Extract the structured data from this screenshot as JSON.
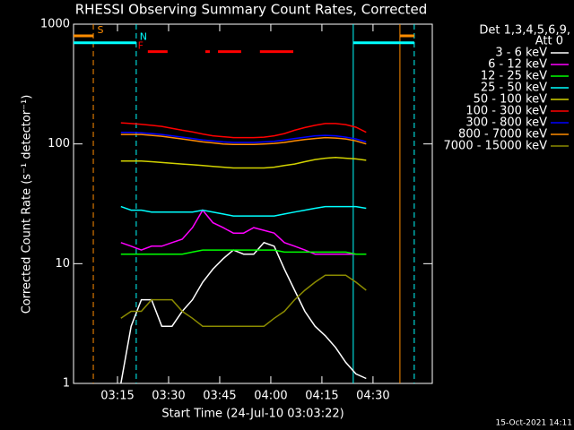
{
  "chart_data": {
    "type": "line",
    "title": "RHESSI Observing Summary Count Rates, Corrected",
    "x_label": "Start Time (24-Jul-10 03:03:22)",
    "y_label": "Corrected Count Rate (s⁻¹ detector⁻¹)",
    "legend_header": [
      "Det 1,3,4,5,6,9,",
      "Att 0"
    ],
    "footer": "15-Oct-2021 14:11",
    "log_y": true,
    "xlim": [
      182.1,
      287.4
    ],
    "ylim": [
      1,
      1000
    ],
    "xticks": [
      {
        "value": 195,
        "label": "03:15"
      },
      {
        "value": 210,
        "label": "03:30"
      },
      {
        "value": 225,
        "label": "03:45"
      },
      {
        "value": 240,
        "label": "04:00"
      },
      {
        "value": 255,
        "label": "04:15"
      },
      {
        "value": 270,
        "label": "04:30"
      }
    ],
    "yticks": [
      1,
      10,
      100,
      1000
    ],
    "x": [
      196,
      199,
      202,
      205,
      208,
      211,
      214,
      217,
      220,
      223,
      226,
      229,
      232,
      235,
      238,
      241,
      244,
      247,
      250,
      253,
      256,
      259,
      262,
      265,
      268
    ],
    "series": [
      {
        "name": "3 - 6 keV",
        "color": "#ffffff",
        "values": [
          1,
          3,
          5,
          5,
          3,
          3,
          4,
          5,
          7,
          9,
          11,
          13,
          12,
          12,
          15,
          14,
          9,
          6,
          4,
          3,
          2.5,
          2,
          1.5,
          1.2,
          1.1
        ]
      },
      {
        "name": "6 - 12 keV",
        "color": "#ff00ff",
        "values": [
          15,
          14,
          13,
          14,
          14,
          15,
          16,
          20,
          28,
          22,
          20,
          18,
          18,
          20,
          19,
          18,
          15,
          14,
          13,
          12,
          12,
          12,
          12,
          12,
          12
        ]
      },
      {
        "name": "12 - 25 keV",
        "color": "#00ff00",
        "values": [
          12,
          12,
          12,
          12,
          12,
          12,
          12,
          12.5,
          13,
          13,
          13,
          13,
          13,
          13,
          13,
          13,
          12.5,
          12.5,
          12.5,
          12.5,
          12.5,
          12.5,
          12.5,
          12,
          12
        ]
      },
      {
        "name": "25 - 50 keV",
        "color": "#00ffff",
        "values": [
          30,
          28,
          28,
          27,
          27,
          27,
          27,
          27,
          28,
          27,
          26,
          25,
          25,
          25,
          25,
          25,
          26,
          27,
          28,
          29,
          30,
          30,
          30,
          30,
          29
        ]
      },
      {
        "name": "50 - 100 keV",
        "color": "#d2d200",
        "values": [
          72,
          72,
          72,
          71,
          70,
          69,
          68,
          67,
          66,
          65,
          64,
          63,
          63,
          63,
          63,
          64,
          66,
          68,
          71,
          74,
          76,
          77,
          76,
          75,
          73
        ]
      },
      {
        "name": "100 - 300 keV",
        "color": "#ff0000",
        "values": [
          150,
          148,
          146,
          143,
          140,
          135,
          130,
          126,
          121,
          117,
          115,
          113,
          113,
          113,
          114,
          117,
          122,
          130,
          137,
          143,
          148,
          148,
          145,
          138,
          125
        ]
      },
      {
        "name": "300 - 800 keV",
        "color": "#0000ff",
        "values": [
          125,
          125,
          124,
          122,
          120,
          117,
          114,
          111,
          108,
          106,
          104,
          103,
          103,
          103,
          104,
          105,
          108,
          111,
          114,
          117,
          118,
          117,
          114,
          110,
          104
        ]
      },
      {
        "name": "800 - 7000 keV",
        "color": "#ff8c00",
        "values": [
          120,
          120,
          120,
          118,
          116,
          113,
          110,
          107,
          104,
          102,
          100,
          99,
          99,
          99,
          100,
          101,
          103,
          106,
          109,
          111,
          113,
          112,
          110,
          106,
          100
        ]
      },
      {
        "name": "7000 - 15000 keV",
        "color": "#8b8b00",
        "values": [
          3.5,
          4,
          4,
          5,
          5,
          5,
          4,
          3.5,
          3,
          3,
          3,
          3,
          3,
          3,
          3,
          3.5,
          4,
          5,
          6,
          7,
          8,
          8,
          8,
          7,
          6
        ]
      }
    ],
    "flags": [
      {
        "label": "S",
        "color": "#ff8c00",
        "y": 800,
        "spans": [
          [
            182.1,
            187.9
          ],
          [
            277.9,
            282.1
          ]
        ]
      },
      {
        "label": "N",
        "color": "#00ffff",
        "y": 700,
        "spans": [
          [
            182.1,
            200.5
          ],
          [
            264.2,
            282.1
          ]
        ]
      },
      {
        "label": "F",
        "color": "#ff0000",
        "y": 590,
        "spans": [
          [
            203.9,
            209.7
          ],
          [
            220.8,
            222.1
          ],
          [
            224.5,
            231.3
          ],
          [
            236.8,
            246.6
          ]
        ]
      }
    ],
    "vlines": [
      {
        "x": 187.9,
        "color": "#ff8c00",
        "dashed": true
      },
      {
        "x": 200.5,
        "color": "#00ffff",
        "dashed": true
      },
      {
        "x": 264.2,
        "color": "#00ffff",
        "dashed": false
      },
      {
        "x": 277.9,
        "color": "#ff8c00",
        "dashed": false
      },
      {
        "x": 282.1,
        "color": "#00ffff",
        "dashed": true
      }
    ]
  }
}
